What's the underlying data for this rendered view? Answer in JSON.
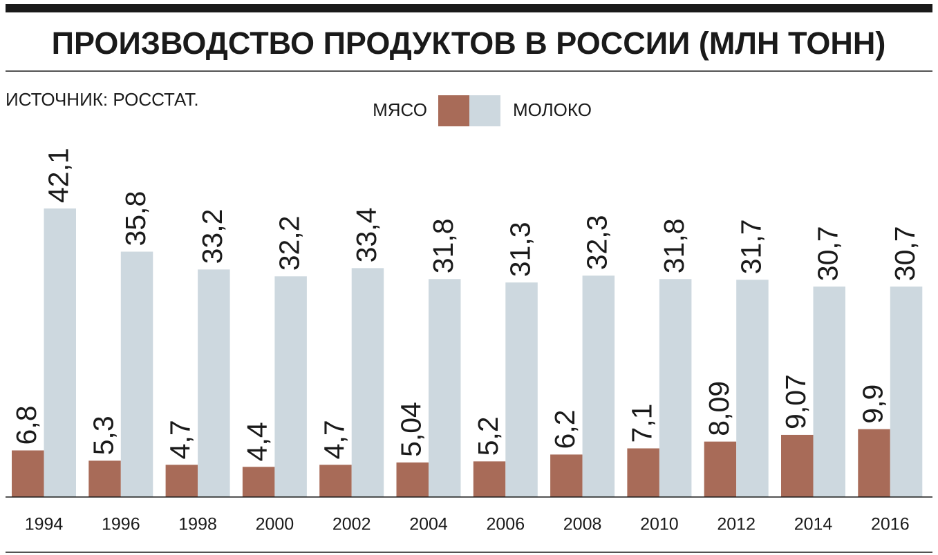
{
  "chart_data": {
    "type": "bar",
    "title": "ПРОИЗВОДСТВО ПРОДУКТОВ В РОССИИ (МЛН ТОНН)",
    "source": "ИСТОЧНИК: РОССТАТ.",
    "categories": [
      "1994",
      "1996",
      "1998",
      "2000",
      "2002",
      "2004",
      "2006",
      "2008",
      "2010",
      "2012",
      "2014",
      "2016"
    ],
    "series": [
      {
        "name": "МЯСО",
        "color": "#a86b58",
        "values": [
          6.8,
          5.3,
          4.7,
          4.4,
          4.7,
          5.04,
          5.2,
          6.2,
          7.1,
          8.09,
          9.07,
          9.9
        ],
        "value_labels": [
          "6,8",
          "5,3",
          "4,7",
          "4,4",
          "4,7",
          "5,04",
          "5,2",
          "6,2",
          "7,1",
          "8,09",
          "9,07",
          "9,9"
        ]
      },
      {
        "name": "МОЛОКО",
        "color": "#cdd8df",
        "values": [
          42.1,
          35.8,
          33.2,
          32.2,
          33.4,
          31.8,
          31.3,
          32.3,
          31.8,
          31.7,
          30.7,
          30.7
        ],
        "value_labels": [
          "42,1",
          "35,8",
          "33,2",
          "32,2",
          "33,4",
          "31,8",
          "31,3",
          "32,3",
          "31,8",
          "31,7",
          "30,7",
          "30,7"
        ]
      }
    ]
  }
}
